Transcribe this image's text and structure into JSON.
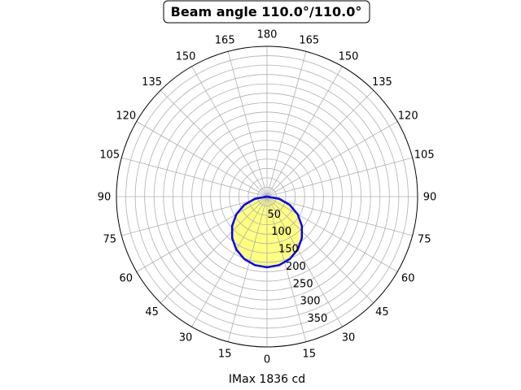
{
  "chart_data": {
    "type": "polar",
    "title": "Beam angle 110.0°/110.0°",
    "xlabel": "IMax 1836 cd",
    "angular_tick_labels": [
      "0",
      "15",
      "30",
      "45",
      "60",
      "75",
      "90",
      "105",
      "120",
      "135",
      "150",
      "165",
      "180",
      "165",
      "150",
      "135",
      "120",
      "105",
      "90",
      "75",
      "60",
      "45",
      "30",
      "15"
    ],
    "radial_ticks": [
      50,
      100,
      150,
      200,
      250,
      300,
      350
    ],
    "rlim": [
      0,
      400
    ],
    "grid": true,
    "series": [
      {
        "angles": [
          -90,
          -80,
          -70,
          -60,
          -50,
          -40,
          -30,
          -20,
          -10,
          0,
          10,
          20,
          30,
          40,
          50,
          60,
          70,
          80,
          90
        ],
        "values": [
          0,
          32.6,
          64.3,
          94.0,
          120.9,
          144.0,
          162.8,
          176.7,
          185.2,
          188.0,
          185.2,
          176.7,
          162.8,
          144.0,
          120.9,
          94.0,
          64.3,
          32.6,
          0
        ],
        "line_color": "#0000ff",
        "fill_color": "#ffff80"
      }
    ]
  }
}
